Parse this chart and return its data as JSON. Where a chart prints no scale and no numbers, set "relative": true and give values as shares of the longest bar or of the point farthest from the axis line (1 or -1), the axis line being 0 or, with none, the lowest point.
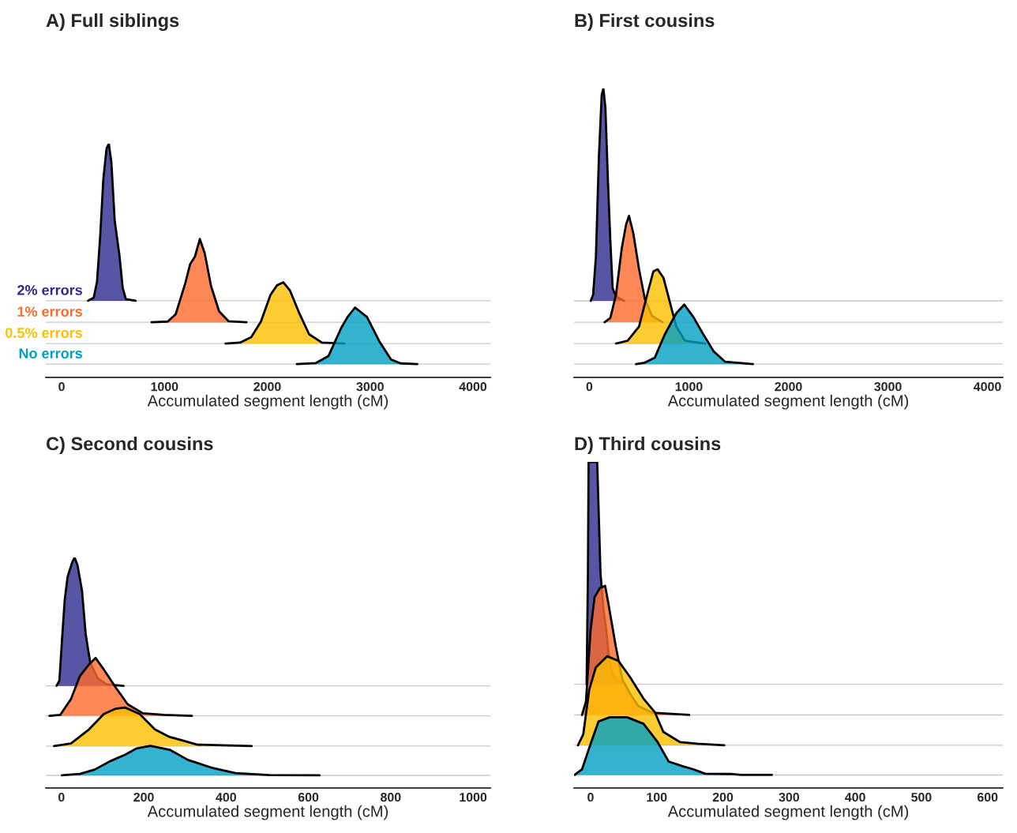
{
  "chart_data": [
    {
      "type": "area",
      "title": "A) Full siblings",
      "xlabel": "Accumulated segment length (cM)",
      "relative": true,
      "xlim": [
        -154,
        4169
      ],
      "xticks": [
        0,
        1000,
        2000,
        3000,
        4000
      ],
      "ref_lines": [
        {
          "axis": "y",
          "value": 0.328,
          "color": "#c8c8c8"
        },
        {
          "axis": "y",
          "value": 0.236,
          "color": "#c8c8c8"
        },
        {
          "axis": "y",
          "value": 0.145,
          "color": "#c8c8c8"
        },
        {
          "axis": "y",
          "value": 0.057,
          "color": "#c8c8c8"
        }
      ],
      "series": [
        {
          "name": "2% errors",
          "color": "#2e2a8e",
          "x": [
            256,
            312,
            344,
            375,
            406,
            437,
            459,
            484,
            516,
            562,
            594,
            625,
            719
          ],
          "values": [
            0.328,
            0.341,
            0.409,
            0.604,
            0.852,
            0.98,
            1,
            0.919,
            0.671,
            0.523,
            0.382,
            0.335,
            0.328
          ]
        },
        {
          "name": "1% errors",
          "color": "#fe6a2c",
          "x": [
            875,
            1031,
            1109,
            1203,
            1250,
            1297,
            1344,
            1391,
            1453,
            1531,
            1625,
            1797
          ],
          "values": [
            0.236,
            0.239,
            0.27,
            0.404,
            0.485,
            0.518,
            0.592,
            0.532,
            0.391,
            0.283,
            0.24,
            0.236
          ]
        },
        {
          "name": "0.5% errors",
          "color": "#fdbf00",
          "x": [
            1594,
            1734,
            1844,
            1938,
            2031,
            2094,
            2156,
            2219,
            2313,
            2406,
            2531,
            2750
          ],
          "values": [
            0.145,
            0.149,
            0.172,
            0.239,
            0.353,
            0.394,
            0.407,
            0.373,
            0.273,
            0.185,
            0.149,
            0.145
          ]
        },
        {
          "name": "No errors",
          "color": "#00a0c4",
          "x": [
            2288,
            2469,
            2594,
            2719,
            2781,
            2853,
            2969,
            3094,
            3203,
            3297,
            3459
          ],
          "values": [
            0.057,
            0.061,
            0.091,
            0.212,
            0.259,
            0.299,
            0.259,
            0.151,
            0.077,
            0.06,
            0.057
          ]
        }
      ]
    },
    {
      "type": "area",
      "title": "B) First cousins",
      "xlabel": "Accumulated segment length (cM)",
      "relative": true,
      "xlim": [
        -154,
        4154
      ],
      "xticks": [
        0,
        1000,
        2000,
        3000,
        4000
      ],
      "ref_lines": [
        {
          "axis": "y",
          "value": 0.265,
          "color": "#c8c8c8"
        },
        {
          "axis": "y",
          "value": 0.191,
          "color": "#c8c8c8"
        },
        {
          "axis": "y",
          "value": 0.117,
          "color": "#c8c8c8"
        },
        {
          "axis": "y",
          "value": 0.046,
          "color": "#c8c8c8"
        }
      ],
      "series": [
        {
          "color": "#2e2a8e",
          "x": [
            14,
            38,
            66,
            95,
            124,
            141,
            161,
            187,
            211,
            234,
            254,
            291,
            349
          ],
          "values": [
            0.265,
            0.287,
            0.419,
            0.757,
            0.978,
            1,
            0.934,
            0.677,
            0.471,
            0.309,
            0.291,
            0.275,
            0.265
          ]
        },
        {
          "color": "#fe6a2c",
          "x": [
            153,
            211,
            268,
            326,
            369,
            398,
            441,
            499,
            557,
            629,
            738
          ],
          "values": [
            0.191,
            0.206,
            0.287,
            0.448,
            0.529,
            0.559,
            0.5,
            0.375,
            0.272,
            0.213,
            0.191
          ]
        },
        {
          "color": "#fdbf00",
          "x": [
            268,
            384,
            499,
            586,
            643,
            686,
            744,
            801,
            873,
            960,
            1162
          ],
          "values": [
            0.117,
            0.127,
            0.176,
            0.293,
            0.367,
            0.374,
            0.345,
            0.271,
            0.176,
            0.127,
            0.117
          ]
        },
        {
          "color": "#00a0c4",
          "x": [
            470,
            557,
            657,
            758,
            873,
            954,
            1047,
            1133,
            1249,
            1365,
            1644
          ],
          "values": [
            0.046,
            0.051,
            0.068,
            0.149,
            0.222,
            0.252,
            0.208,
            0.156,
            0.09,
            0.054,
            0.046
          ]
        }
      ]
    },
    {
      "type": "area",
      "title": "C) Second cousins",
      "xlabel": "Accumulated segment length (cM)",
      "relative": true,
      "xlim": [
        -38,
        1042
      ],
      "xticks": [
        0,
        200,
        400,
        600,
        800,
        1000
      ],
      "ref_lines": [
        {
          "axis": "y",
          "value": 0.443,
          "color": "#c8c8c8"
        },
        {
          "axis": "y",
          "value": 0.313,
          "color": "#c8c8c8"
        },
        {
          "axis": "y",
          "value": 0.182,
          "color": "#c8c8c8"
        },
        {
          "axis": "y",
          "value": 0.055,
          "color": "#c8c8c8"
        }
      ],
      "series": [
        {
          "color": "#2e2a8e",
          "x": [
            -12,
            -5,
            1,
            8,
            15,
            26,
            32,
            39,
            50,
            59,
            70,
            88,
            110,
            151
          ],
          "values": [
            0.443,
            0.465,
            0.632,
            0.816,
            0.916,
            0.978,
            1,
            0.967,
            0.855,
            0.666,
            0.543,
            0.476,
            0.449,
            0.443
          ]
        },
        {
          "color": "#fe6a2c",
          "x": [
            -29,
            -3,
            23,
            45,
            67,
            83,
            103,
            132,
            161,
            198,
            249,
            317
          ],
          "values": [
            0.313,
            0.317,
            0.385,
            0.486,
            0.536,
            0.564,
            0.514,
            0.436,
            0.363,
            0.324,
            0.317,
            0.313
          ]
        },
        {
          "color": "#fdbf00",
          "x": [
            -18,
            23,
            67,
            103,
            132,
            154,
            190,
            227,
            263,
            293,
            330,
            462
          ],
          "values": [
            0.182,
            0.193,
            0.254,
            0.321,
            0.344,
            0.349,
            0.321,
            0.254,
            0.221,
            0.207,
            0.188,
            0.182
          ]
        },
        {
          "color": "#00a0c4",
          "x": [
            1,
            45,
            81,
            118,
            154,
            183,
            216,
            263,
            307,
            365,
            423,
            505,
            627
          ],
          "values": [
            0.055,
            0.061,
            0.08,
            0.116,
            0.144,
            0.172,
            0.183,
            0.166,
            0.122,
            0.088,
            0.065,
            0.056,
            0.055
          ]
        }
      ]
    },
    {
      "type": "area",
      "title": "D) Third cousins",
      "xlabel": "Accumulated segment length (cM)",
      "relative": true,
      "xlim": [
        -25,
        623
      ],
      "xticks": [
        0,
        100,
        200,
        300,
        400,
        500,
        600
      ],
      "ref_lines": [
        {
          "axis": "y",
          "value": 0.318,
          "color": "#c8c8c8"
        },
        {
          "axis": "y",
          "value": 0.224,
          "color": "#c8c8c8"
        },
        {
          "axis": "y",
          "value": 0.131,
          "color": "#c8c8c8"
        },
        {
          "axis": "y",
          "value": 0.04,
          "color": "#c8c8c8"
        }
      ],
      "series": [
        {
          "color": "#2e2a8e",
          "x": [
            -6,
            -4,
            -3,
            10,
            12,
            15,
            19,
            23,
            28,
            33,
            42,
            52
          ],
          "values": [
            0.318,
            0.659,
            1,
            1,
            0.864,
            0.659,
            0.557,
            0.495,
            0.4,
            0.349,
            0.328,
            0.318
          ]
        },
        {
          "color": "#fe6a2c",
          "x": [
            -13,
            -7,
            0,
            6,
            14,
            22,
            27,
            38,
            48,
            59,
            72,
            93,
            118,
            149
          ],
          "values": [
            0.224,
            0.265,
            0.483,
            0.585,
            0.613,
            0.62,
            0.565,
            0.435,
            0.333,
            0.292,
            0.251,
            0.231,
            0.228,
            0.224
          ]
        },
        {
          "color": "#fdbf00",
          "x": [
            -19,
            -11,
            -2,
            8,
            25,
            42,
            59,
            80,
            97,
            110,
            135,
            161,
            202
          ],
          "values": [
            0.131,
            0.165,
            0.302,
            0.37,
            0.404,
            0.39,
            0.342,
            0.274,
            0.233,
            0.172,
            0.141,
            0.136,
            0.131
          ]
        },
        {
          "color": "#00a0c4",
          "x": [
            -24,
            -13,
            0,
            12,
            29,
            55,
            80,
            101,
            118,
            139,
            156,
            173,
            211,
            228,
            274
          ],
          "values": [
            0.04,
            0.057,
            0.135,
            0.204,
            0.217,
            0.217,
            0.197,
            0.142,
            0.081,
            0.067,
            0.057,
            0.044,
            0.043,
            0.04,
            0.04
          ]
        }
      ]
    }
  ]
}
